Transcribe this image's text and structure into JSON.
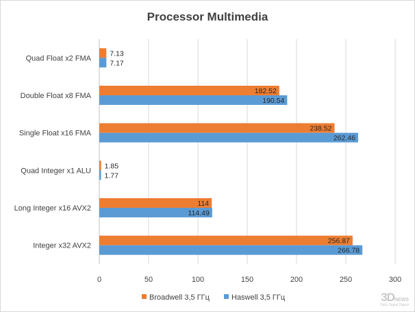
{
  "chart_data": {
    "type": "bar",
    "orientation": "horizontal",
    "title": "Processor Multimedia",
    "categories": [
      "Quad Float x2 FMA",
      "Double Float x8 FMA",
      "Single Float x16 FMA",
      "Quad Integer x1 ALU",
      "Long Integer x16 AVX2",
      "Integer x32 AVX2"
    ],
    "series": [
      {
        "name": "Broadwell 3,5 ГГц",
        "color": "#ed7d31",
        "values": [
          7.13,
          182.52,
          238.52,
          1.85,
          114,
          256.87
        ],
        "labels": [
          "7.13",
          "182.52",
          "238.52",
          "1.85",
          "114",
          "256.87"
        ]
      },
      {
        "name": "Haswell 3,5 ГГц",
        "color": "#5b9bd5",
        "values": [
          7.17,
          190.54,
          262.46,
          1.77,
          114.49,
          266.78
        ],
        "labels": [
          "7.17",
          "190.54",
          "262.46",
          "1.77",
          "114.49",
          "266.78"
        ]
      }
    ],
    "xlim": [
      0,
      300
    ],
    "xticks": [
      "0",
      "50",
      "100",
      "150",
      "200",
      "250",
      "300"
    ],
    "grid": "vertical",
    "legend": "bottom"
  },
  "watermark": {
    "main": "3D",
    "news": "NEWS",
    "sub": "Daily Digital Digest"
  }
}
